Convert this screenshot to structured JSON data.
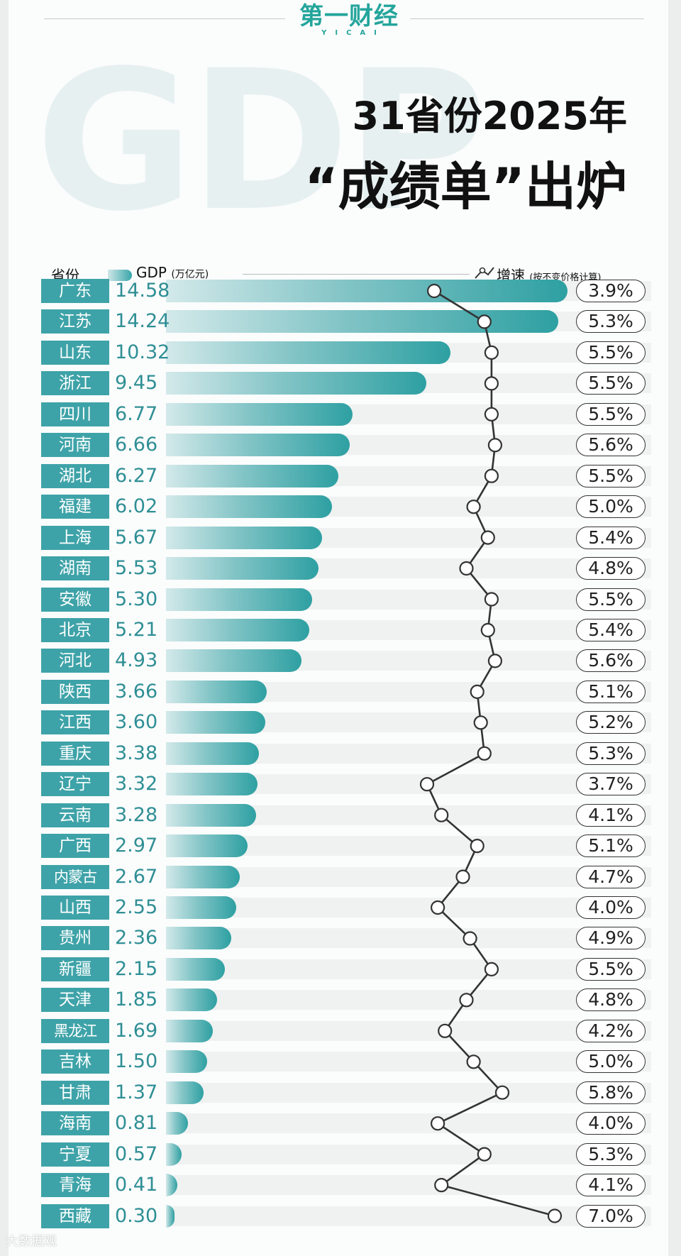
{
  "logo": {
    "cn": "第一财经",
    "en": "YICAI"
  },
  "background_word": "GDP",
  "title": {
    "line1": "31省份2025年",
    "line2": "“成绩单”出炉"
  },
  "header": {
    "province": "省份",
    "gdp": "GDP",
    "gdp_unit": "(万亿元)",
    "growth": "增速",
    "growth_note": "(按不变价格计算)"
  },
  "watermark": "大数据观",
  "colors": {
    "accent": "#3ea3a8",
    "bar_dark": "#2ea0a2",
    "bar_light": "#d3e9ea",
    "value_text": "#2f8f95"
  },
  "chart_data": {
    "type": "bar",
    "title": "31省份2025年“成绩单”出炉",
    "xlabel": "GDP(万亿元)",
    "ylabel": "省份",
    "xlim": [
      0,
      14.58
    ],
    "categories": [
      "广东",
      "江苏",
      "山东",
      "浙江",
      "四川",
      "河南",
      "湖北",
      "福建",
      "上海",
      "湖南",
      "安徽",
      "北京",
      "河北",
      "陕西",
      "江西",
      "重庆",
      "辽宁",
      "云南",
      "广西",
      "内蒙古",
      "山西",
      "贵州",
      "新疆",
      "天津",
      "黑龙江",
      "吉林",
      "甘肃",
      "海南",
      "宁夏",
      "青海",
      "西藏"
    ],
    "series": [
      {
        "name": "GDP(万亿元)",
        "values": [
          "14.58",
          "14.24",
          "10.32",
          "9.45",
          "6.77",
          "6.66",
          "6.27",
          "6.02",
          "5.67",
          "5.53",
          "5.30",
          "5.21",
          "4.93",
          "3.66",
          "3.60",
          "3.38",
          "3.32",
          "3.28",
          "2.97",
          "2.67",
          "2.55",
          "2.36",
          "2.15",
          "1.85",
          "1.69",
          "1.50",
          "1.37",
          "0.81",
          "0.57",
          "0.41",
          "0.30"
        ]
      },
      {
        "name": "增速(按不变价格计算)",
        "values": [
          "3.9%",
          "5.3%",
          "5.5%",
          "5.5%",
          "5.5%",
          "5.6%",
          "5.5%",
          "5.0%",
          "5.4%",
          "4.8%",
          "5.5%",
          "5.4%",
          "5.6%",
          "5.1%",
          "5.2%",
          "5.3%",
          "3.7%",
          "4.1%",
          "5.1%",
          "4.7%",
          "4.0%",
          "4.9%",
          "5.5%",
          "4.8%",
          "4.2%",
          "5.0%",
          "5.8%",
          "4.0%",
          "5.3%",
          "4.1%",
          "7.0%"
        ]
      }
    ]
  }
}
